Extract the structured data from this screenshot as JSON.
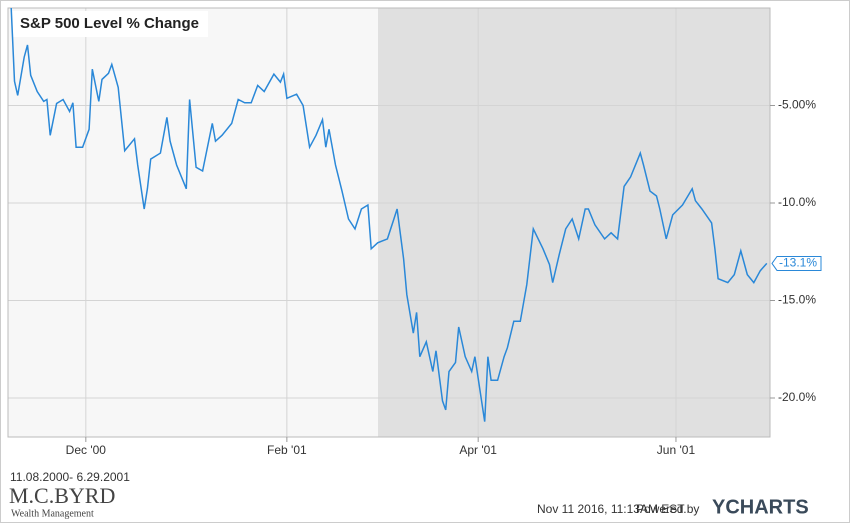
{
  "chart_data": {
    "type": "line",
    "title": "S&P 500 Level % Change",
    "x": [
      "2000-11-08",
      "2000-11-09",
      "2000-11-10",
      "2000-11-12",
      "2000-11-13",
      "2000-11-14",
      "2000-11-16",
      "2000-11-18",
      "2000-11-19",
      "2000-11-20",
      "2000-11-22",
      "2000-11-24",
      "2000-11-26",
      "2000-11-27",
      "2000-11-28",
      "2000-11-30",
      "2000-12-02",
      "2000-12-03",
      "2000-12-05",
      "2000-12-06",
      "2000-12-08",
      "2000-12-09",
      "2000-12-11",
      "2000-12-13",
      "2000-12-16",
      "2000-12-17",
      "2000-12-19",
      "2000-12-20",
      "2000-12-21",
      "2000-12-24",
      "2000-12-26",
      "2000-12-27",
      "2000-12-29",
      "2001-01-01",
      "2001-01-02",
      "2001-01-04",
      "2001-01-06",
      "2001-01-09",
      "2001-01-10",
      "2001-01-12",
      "2001-01-15",
      "2001-01-17",
      "2001-01-19",
      "2001-01-21",
      "2001-01-23",
      "2001-01-25",
      "2001-01-28",
      "2001-01-30",
      "2001-01-31",
      "2001-02-01",
      "2001-02-04",
      "2001-02-06",
      "2001-02-08",
      "2001-02-10",
      "2001-02-12",
      "2001-02-13",
      "2001-02-14",
      "2001-02-16",
      "2001-02-18",
      "2001-02-20",
      "2001-02-22",
      "2001-02-24",
      "2001-02-26",
      "2001-02-27",
      "2001-03-01",
      "2001-03-04",
      "2001-03-06",
      "2001-03-07",
      "2001-03-09",
      "2001-03-10",
      "2001-03-12",
      "2001-03-13",
      "2001-03-14",
      "2001-03-16",
      "2001-03-18",
      "2001-03-19",
      "2001-03-21",
      "2001-03-22",
      "2001-03-23",
      "2001-03-25",
      "2001-03-26",
      "2001-03-28",
      "2001-03-30",
      "2001-03-31",
      "2001-04-03",
      "2001-04-04",
      "2001-04-05",
      "2001-04-07",
      "2001-04-09",
      "2001-04-10",
      "2001-04-12",
      "2001-04-14",
      "2001-04-16",
      "2001-04-18",
      "2001-04-21",
      "2001-04-23",
      "2001-04-24",
      "2001-04-26",
      "2001-04-28",
      "2001-04-30",
      "2001-05-02",
      "2001-05-04",
      "2001-05-05",
      "2001-05-07",
      "2001-05-10",
      "2001-05-12",
      "2001-05-14",
      "2001-05-16",
      "2001-05-18",
      "2001-05-21",
      "2001-05-22",
      "2001-05-24",
      "2001-05-26",
      "2001-05-27",
      "2001-05-29",
      "2001-05-31",
      "2001-06-03",
      "2001-06-06",
      "2001-06-07",
      "2001-06-09",
      "2001-06-12",
      "2001-06-13",
      "2001-06-14",
      "2001-06-17",
      "2001-06-19",
      "2001-06-21",
      "2001-06-23",
      "2001-06-25",
      "2001-06-27",
      "2001-06-29"
    ],
    "series": [
      {
        "name": "S&P 500 Level % Change",
        "color": "#2a88d8",
        "end_label": "-13.1%",
        "values": [
          0,
          -3.76,
          -4.48,
          -2.52,
          -1.9,
          -3.45,
          -4.28,
          -4.79,
          -4.69,
          -6.53,
          -4.9,
          -4.69,
          -5.31,
          -4.86,
          -7.14,
          -7.14,
          -6.22,
          -3.14,
          -4.79,
          -3.66,
          -3.35,
          -2.89,
          -4.07,
          -7.32,
          -6.71,
          -8.05,
          -10.31,
          -9.27,
          -7.75,
          -7.44,
          -5.61,
          -6.83,
          -8.05,
          -9.27,
          -4.69,
          -8.17,
          -8.36,
          -5.92,
          -6.83,
          -6.53,
          -5.92,
          -4.69,
          -4.86,
          -4.86,
          -3.97,
          -4.28,
          -3.39,
          -3.8,
          -3.39,
          -4.63,
          -4.42,
          -5,
          -7.14,
          -6.53,
          -5.73,
          -7.14,
          -6.22,
          -8.05,
          -9.39,
          -10.82,
          -11.33,
          -10.31,
          -10.1,
          -12.35,
          -12.04,
          -11.84,
          -10.82,
          -10.31,
          -12.86,
          -14.69,
          -16.67,
          -15.61,
          -17.88,
          -17.12,
          -18.64,
          -17.58,
          -20.15,
          -20.61,
          -18.64,
          -18.18,
          -16.36,
          -17.88,
          -18.64,
          -17.88,
          -21.21,
          -17.88,
          -19.09,
          -19.09,
          -17.88,
          -17.42,
          -16.06,
          -16.06,
          -14.18,
          -11.33,
          -12.35,
          -13.16,
          -14.08,
          -12.65,
          -11.33,
          -10.82,
          -11.84,
          -10.31,
          -10.31,
          -11.12,
          -11.84,
          -11.53,
          -11.84,
          -9.15,
          -8.66,
          -7.44,
          -8.05,
          -9.39,
          -9.64,
          -10.31,
          -11.84,
          -10.61,
          -10.1,
          -9.27,
          -9.88,
          -10.31,
          -11.02,
          -12.35,
          -13.88,
          -14.08,
          -13.67,
          -12.45,
          -13.67,
          -14.08,
          -13.47,
          -13.1
        ]
      }
    ],
    "xlim": [
      "2000-11-07",
      "2001-06-30"
    ],
    "xticks": [
      {
        "value": "2000-12-01",
        "label": "Dec '00"
      },
      {
        "value": "2001-02-01",
        "label": "Feb '01"
      },
      {
        "value": "2001-04-01",
        "label": "Apr '01"
      },
      {
        "value": "2001-06-01",
        "label": "Jun '01"
      }
    ],
    "ylim": [
      -22,
      0
    ],
    "yticks": [
      {
        "value": -5,
        "label": "-5.00%"
      },
      {
        "value": -10,
        "label": "-10.0%"
      },
      {
        "value": -15,
        "label": "-15.0%"
      },
      {
        "value": -20,
        "label": "-20.0%"
      }
    ],
    "grid": true
  },
  "footer": {
    "date_range": "11.08.2000- 6.29.2001",
    "brand": "M.C.BYRD",
    "brand_sub": "Wealth Management",
    "timestamp": "Nov 11 2016, 11:13AM EST.",
    "powered": "Powered by",
    "provider": "YCHARTS"
  }
}
